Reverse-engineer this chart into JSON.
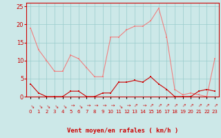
{
  "hours": [
    0,
    1,
    2,
    3,
    4,
    5,
    6,
    7,
    8,
    9,
    10,
    11,
    12,
    13,
    14,
    15,
    16,
    17,
    18,
    19,
    20,
    21,
    22,
    23
  ],
  "rafales": [
    19,
    13,
    10,
    7,
    7,
    11.5,
    10.5,
    8,
    5.5,
    5.5,
    16.5,
    16.5,
    18.5,
    19.5,
    19.5,
    21,
    24.5,
    16.5,
    2,
    0.5,
    1,
    0.5,
    0,
    10.5
  ],
  "vent_moyen": [
    3.5,
    1,
    0,
    0,
    0,
    1.5,
    1.5,
    0,
    0,
    1,
    1,
    4,
    4,
    4.5,
    4,
    5.5,
    3.5,
    2,
    0,
    0,
    0,
    1.5,
    2,
    1.5
  ],
  "bg_color": "#cce8e8",
  "grid_color": "#99cccc",
  "line_color_rafales": "#f08080",
  "line_color_vent": "#cc0000",
  "marker_color_rafales": "#f08080",
  "marker_color_vent": "#cc0000",
  "xlabel": "Vent moyen/en rafales ( km/h )",
  "xlabel_color": "#cc0000",
  "tick_color": "#cc0000",
  "ylim": [
    0,
    26
  ],
  "yticks": [
    0,
    5,
    10,
    15,
    20,
    25
  ],
  "wind_arrows": [
    225,
    225,
    225,
    225,
    225,
    270,
    225,
    270,
    270,
    270,
    270,
    225,
    270,
    315,
    270,
    315,
    315,
    315,
    315,
    315,
    315,
    315,
    315,
    315
  ]
}
